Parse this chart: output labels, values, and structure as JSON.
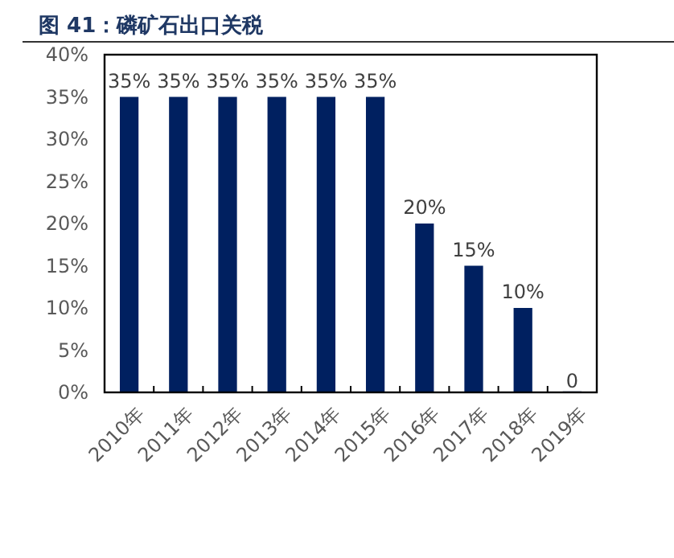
{
  "chart_data": {
    "type": "bar",
    "title": "图 41：磷矿石出口关税",
    "categories": [
      "2010年",
      "2011年",
      "2012年",
      "2013年",
      "2014年",
      "2015年",
      "2016年",
      "2017年",
      "2018年",
      "2019年"
    ],
    "values": [
      35,
      35,
      35,
      35,
      35,
      35,
      20,
      15,
      10,
      0
    ],
    "value_labels": [
      "35%",
      "35%",
      "35%",
      "35%",
      "35%",
      "35%",
      "20%",
      "15%",
      "10%",
      "0"
    ],
    "color": "#002060",
    "ylim": [
      0,
      40
    ],
    "yticks": [
      {
        "value": 0,
        "label": "0%"
      },
      {
        "value": 5,
        "label": "5%"
      },
      {
        "value": 10,
        "label": "10%"
      },
      {
        "value": 15,
        "label": "15%"
      },
      {
        "value": 20,
        "label": "20%"
      },
      {
        "value": 25,
        "label": "25%"
      },
      {
        "value": 30,
        "label": "30%"
      },
      {
        "value": 35,
        "label": "35%"
      },
      {
        "value": 40,
        "label": "40%"
      }
    ],
    "grid": false
  }
}
